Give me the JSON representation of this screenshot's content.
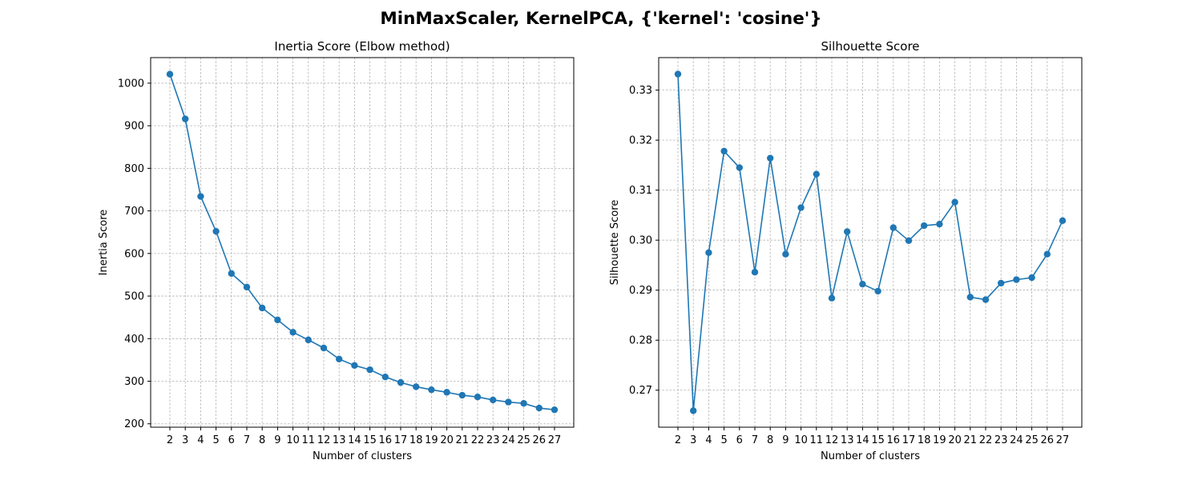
{
  "figure": {
    "suptitle": "MinMaxScaler, KernelPCA, {'kernel': 'cosine'}"
  },
  "chart_data": [
    {
      "type": "line",
      "title": "Inertia Score (Elbow method)",
      "xlabel": "Number of clusters",
      "ylabel": "Inertia Score",
      "x": [
        2,
        3,
        4,
        5,
        6,
        7,
        8,
        9,
        10,
        11,
        12,
        13,
        14,
        15,
        16,
        17,
        18,
        19,
        20,
        21,
        22,
        23,
        24,
        25,
        26,
        27
      ],
      "xlim": [
        0.75,
        28.25
      ],
      "ylim": [
        192,
        1060
      ],
      "yticks": [
        200,
        300,
        400,
        500,
        600,
        700,
        800,
        900,
        1000
      ],
      "ytick_labels": [
        "200",
        "300",
        "400",
        "500",
        "600",
        "700",
        "800",
        "900",
        "1000"
      ],
      "grid": true,
      "marker": "circle",
      "color": "#1f77b4",
      "series": [
        {
          "values": [
            1021,
            916,
            734,
            652,
            553,
            521,
            472,
            444,
            415,
            397,
            378,
            352,
            337,
            327,
            310,
            297,
            287,
            280,
            274,
            267,
            263,
            256,
            251,
            248,
            237,
            233
          ]
        }
      ]
    },
    {
      "type": "line",
      "title": "Silhouette Score",
      "xlabel": "Number of clusters",
      "ylabel": "Silhouette Score",
      "x": [
        2,
        3,
        4,
        5,
        6,
        7,
        8,
        9,
        10,
        11,
        12,
        13,
        14,
        15,
        16,
        17,
        18,
        19,
        20,
        21,
        22,
        23,
        24,
        25,
        26,
        27
      ],
      "xlim": [
        0.75,
        28.25
      ],
      "ylim": [
        0.2626,
        0.3365
      ],
      "yticks": [
        0.27,
        0.28,
        0.29,
        0.3,
        0.31,
        0.32,
        0.33
      ],
      "ytick_labels": [
        "0.27",
        "0.28",
        "0.29",
        "0.30",
        "0.31",
        "0.32",
        "0.33"
      ],
      "grid": true,
      "marker": "circle",
      "color": "#1f77b4",
      "series": [
        {
          "values": [
            0.3332,
            0.2659,
            0.2975,
            0.3178,
            0.3145,
            0.2936,
            0.3164,
            0.2972,
            0.3065,
            0.3132,
            0.2884,
            0.3017,
            0.2912,
            0.2898,
            0.3025,
            0.2999,
            0.3029,
            0.3032,
            0.3076,
            0.2886,
            0.2881,
            0.2914,
            0.2921,
            0.2925,
            0.2972,
            0.3039
          ]
        }
      ]
    }
  ]
}
